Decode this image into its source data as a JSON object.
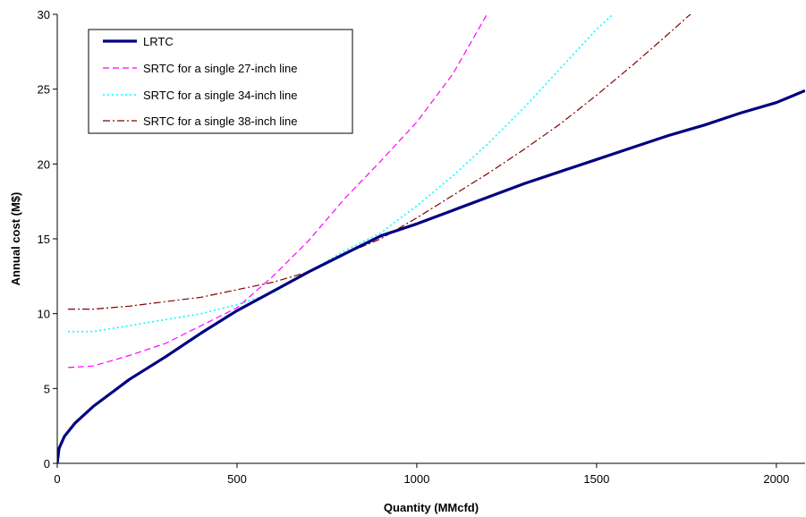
{
  "chart_data": {
    "type": "line",
    "title": "",
    "xlabel": "Quantity (MMcfd)",
    "ylabel": "Annual cost (M$)",
    "xlim": [
      0,
      2080
    ],
    "ylim": [
      0,
      30
    ],
    "x_ticks": [
      0,
      500,
      1000,
      1500,
      2000
    ],
    "y_ticks": [
      0,
      5,
      10,
      15,
      20,
      25,
      30
    ],
    "grid": false,
    "legend_position": "top-left",
    "series": [
      {
        "name": "LRTC",
        "color": "#000080",
        "style": "solid",
        "points": [
          [
            0,
            0
          ],
          [
            5,
            1.0
          ],
          [
            20,
            1.8
          ],
          [
            50,
            2.7
          ],
          [
            100,
            3.8
          ],
          [
            150,
            4.7
          ],
          [
            200,
            5.6
          ],
          [
            300,
            7.1
          ],
          [
            400,
            8.7
          ],
          [
            500,
            10.2
          ],
          [
            600,
            11.5
          ],
          [
            700,
            12.8
          ],
          [
            800,
            14.0
          ],
          [
            900,
            15.2
          ],
          [
            1000,
            16.0
          ],
          [
            1100,
            16.9
          ],
          [
            1200,
            17.8
          ],
          [
            1300,
            18.7
          ],
          [
            1400,
            19.5
          ],
          [
            1500,
            20.3
          ],
          [
            1600,
            21.1
          ],
          [
            1700,
            21.9
          ],
          [
            1800,
            22.6
          ],
          [
            1900,
            23.4
          ],
          [
            2000,
            24.1
          ],
          [
            2080,
            24.9
          ]
        ]
      },
      {
        "name": "SRTC for a single 27-inch line",
        "color": "#FF00FF",
        "style": "dashed",
        "points": [
          [
            30,
            6.4
          ],
          [
            100,
            6.5
          ],
          [
            200,
            7.2
          ],
          [
            300,
            8.0
          ],
          [
            400,
            9.2
          ],
          [
            500,
            10.4
          ],
          [
            600,
            12.5
          ],
          [
            700,
            14.9
          ],
          [
            800,
            17.7
          ],
          [
            900,
            20.2
          ],
          [
            1000,
            22.8
          ],
          [
            1100,
            26.0
          ],
          [
            1200,
            30.2
          ]
        ]
      },
      {
        "name": "SRTC for a single 34-inch line",
        "color": "#00FFFF",
        "style": "dotted",
        "points": [
          [
            30,
            8.8
          ],
          [
            100,
            8.8
          ],
          [
            200,
            9.2
          ],
          [
            300,
            9.6
          ],
          [
            400,
            10.0
          ],
          [
            500,
            10.6
          ],
          [
            600,
            11.4
          ],
          [
            700,
            12.8
          ],
          [
            800,
            14.2
          ],
          [
            900,
            15.4
          ],
          [
            1000,
            17.2
          ],
          [
            1100,
            19.2
          ],
          [
            1200,
            21.4
          ],
          [
            1300,
            23.8
          ],
          [
            1400,
            26.4
          ],
          [
            1500,
            29.0
          ],
          [
            1555,
            30.2
          ]
        ]
      },
      {
        "name": "SRTC for a single 38-inch line",
        "color": "#800000",
        "style": "dash-dot",
        "points": [
          [
            30,
            10.3
          ],
          [
            100,
            10.3
          ],
          [
            200,
            10.5
          ],
          [
            300,
            10.8
          ],
          [
            400,
            11.1
          ],
          [
            500,
            11.6
          ],
          [
            600,
            12.1
          ],
          [
            700,
            12.8
          ],
          [
            800,
            14.0
          ],
          [
            900,
            15.0
          ],
          [
            1000,
            16.4
          ],
          [
            1100,
            17.9
          ],
          [
            1200,
            19.4
          ],
          [
            1300,
            21.0
          ],
          [
            1400,
            22.7
          ],
          [
            1500,
            24.6
          ],
          [
            1600,
            26.6
          ],
          [
            1700,
            28.7
          ],
          [
            1770,
            30.2
          ]
        ]
      }
    ]
  }
}
